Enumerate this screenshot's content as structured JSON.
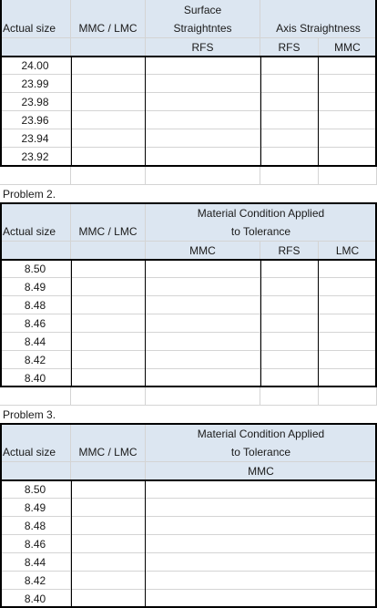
{
  "table1": {
    "headers": {
      "actual_size": "Actual size",
      "mmc_lmc": "MMC / LMC",
      "surface_line1": "Surface",
      "surface_line2": "Straightntes",
      "axis": "Axis Straightness",
      "sub_rfs_1": "RFS",
      "sub_rfs_2": "RFS",
      "sub_mmc": "MMC"
    },
    "rows": [
      "24.00",
      "23.99",
      "23.98",
      "23.96",
      "23.94",
      "23.92"
    ]
  },
  "problem2": {
    "label": "Problem 2.",
    "headers": {
      "actual_size": "Actual size",
      "mmc_lmc": "MMC / LMC",
      "material_line1": "Material Condition Applied",
      "material_line2": "to Tolerance",
      "sub_mmc": "MMC",
      "sub_rfs": "RFS",
      "sub_lmc": "LMC"
    },
    "rows": [
      "8.50",
      "8.49",
      "8.48",
      "8.46",
      "8.44",
      "8.42",
      "8.40"
    ]
  },
  "problem3": {
    "label": "Problem 3.",
    "headers": {
      "actual_size": "Actual size",
      "mmc_lmc": "MMC / LMC",
      "material_line1": "Material Condition Applied",
      "material_line2": "to Tolerance",
      "sub_mmc": "MMC"
    },
    "rows": [
      "8.50",
      "8.49",
      "8.48",
      "8.46",
      "8.44",
      "8.42",
      "8.40"
    ]
  }
}
